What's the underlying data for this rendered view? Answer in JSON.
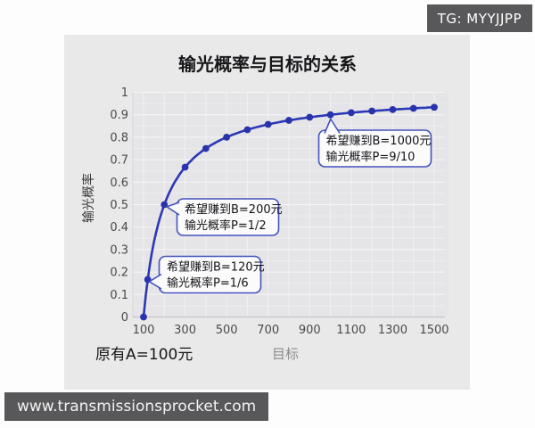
{
  "watermarks": {
    "tg_badge": "TG: MYYJJPP",
    "website_badge": "www.transmissionsprocket.com"
  },
  "chart_data": {
    "type": "line",
    "title": "输光概率与目标的关系",
    "xlabel": "目标",
    "ylabel": "输光概率",
    "footnote": "原有A=100元",
    "initial_amount": 100,
    "xlim": [
      100,
      1500
    ],
    "ylim": [
      0,
      1
    ],
    "grid": true,
    "legend": "none",
    "line_color": "#2c38b4",
    "marker_color": "#2833ac",
    "x_ticks": [
      100,
      300,
      500,
      700,
      900,
      1100,
      1300,
      1500
    ],
    "y_ticks": [
      "0",
      "0.1",
      "0.2",
      "0.3",
      "0.4",
      "0.5",
      "0.6",
      "0.7",
      "0.8",
      "0.9",
      "1"
    ],
    "points": [
      [
        100,
        0
      ],
      [
        120,
        0.1667
      ],
      [
        200,
        0.5
      ],
      [
        300,
        0.6667
      ],
      [
        400,
        0.75
      ],
      [
        500,
        0.8
      ],
      [
        600,
        0.8333
      ],
      [
        700,
        0.8571
      ],
      [
        800,
        0.875
      ],
      [
        900,
        0.8889
      ],
      [
        1000,
        0.9
      ],
      [
        1100,
        0.9091
      ],
      [
        1200,
        0.9167
      ],
      [
        1300,
        0.9231
      ],
      [
        1400,
        0.9286
      ],
      [
        1500,
        0.9333
      ]
    ],
    "annotations": [
      {
        "label_line1": "希望赚到B=200元",
        "label_line2": "输光概率P=1/2",
        "target_x": 200,
        "target_y": 0.5
      },
      {
        "label_line1": "希望赚到B=120元",
        "label_line2": "输光概率P=1/6",
        "target_x": 120,
        "target_y": 0.1667
      },
      {
        "label_line1": "希望赚到B=1000元",
        "label_line2": "输光概率P=9/10",
        "target_x": 1000,
        "target_y": 0.9
      }
    ]
  }
}
